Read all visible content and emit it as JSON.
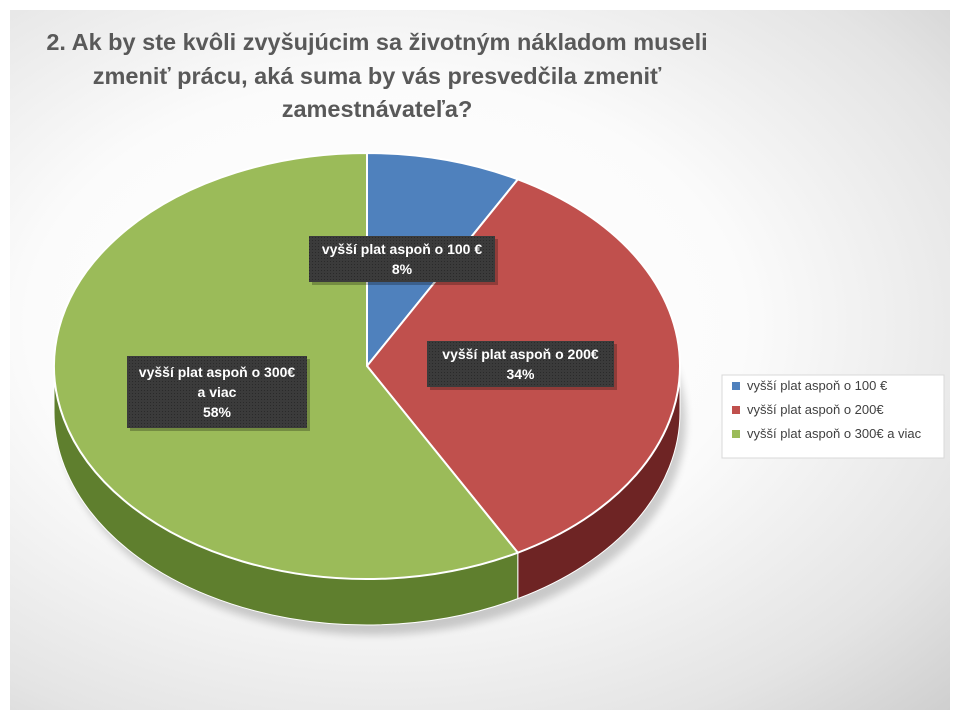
{
  "chart_data": {
    "type": "pie",
    "title": "2. Ak by ste kvôli zvyšujúcim sa životným nákladom museli zmeniť prácu, aká suma by vás presvedčila zmeniť zamestnávateľa?",
    "title_lines": [
      "2. Ak by ste kvôli zvyšujúcim sa životným nákladom museli",
      "zmeniť prácu, aká suma by vás presvedčila zmeniť",
      "zamestnávateľa?"
    ],
    "categories": [
      "vyšší plat aspoň o 100 €",
      "vyšší plat aspoň o 200€",
      "vyšší plat aspoň o 300€ a viac"
    ],
    "values": [
      8,
      34,
      58
    ],
    "value_labels": [
      "8%",
      "34%",
      "58%"
    ],
    "data_label_lines": [
      [
        "vyšší plat aspoň o 100 €",
        "8%"
      ],
      [
        "vyšší plat aspoň o 200€",
        "34%"
      ],
      [
        "vyšší plat aspoň o 300€",
        "a viac",
        "58%"
      ]
    ],
    "colors": [
      "#4f81bd",
      "#c0504d",
      "#9bbb59"
    ],
    "side_colors": [
      "#2f4f7a",
      "#6e2424",
      "#5f7f2e"
    ],
    "legend_position": "right",
    "style": "3d-pie"
  }
}
